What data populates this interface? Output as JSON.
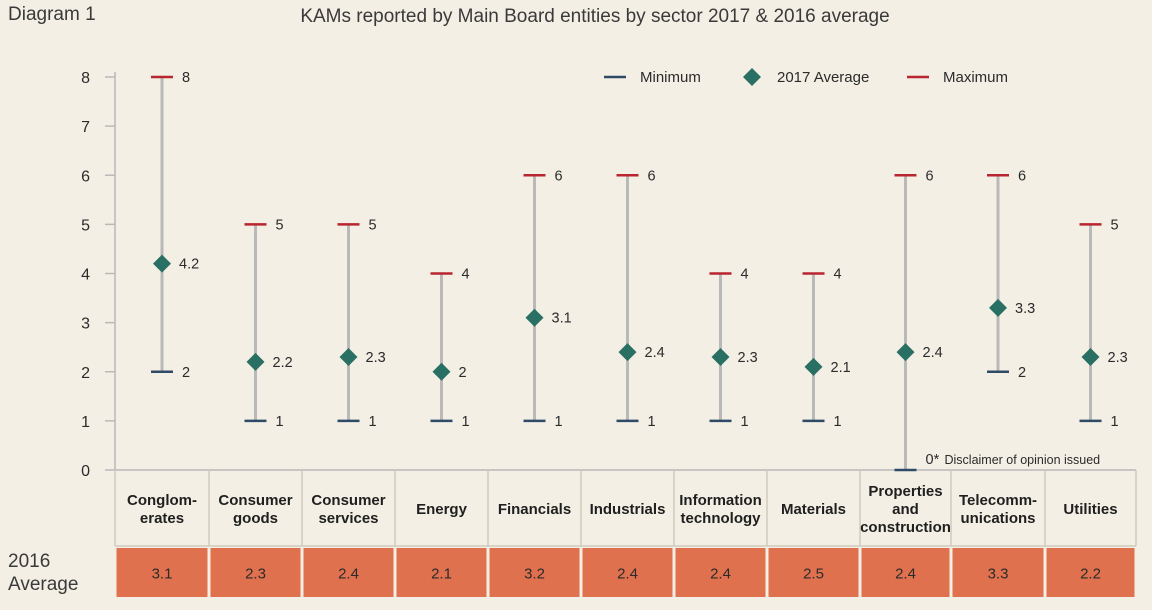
{
  "header": {
    "diagram_label": "Diagram 1",
    "title": "KAMs reported by Main Board entities by sector 2017 & 2016 average"
  },
  "colors": {
    "background": "#f3efe4",
    "minimum": "#2f4a66",
    "maximum": "#b8252f",
    "average": "#2a6f63",
    "range_line": "#b9b9b9",
    "table_cell": "#e0714f",
    "table_border": "#cfcabd"
  },
  "chart_data": {
    "type": "range",
    "title": "KAMs reported by Main Board entities by sector 2017 & 2016 average",
    "ylim": [
      0,
      8
    ],
    "yticks": [
      0,
      1,
      2,
      3,
      4,
      5,
      6,
      7,
      8
    ],
    "legend": {
      "placement": "top-right",
      "items": [
        {
          "label": "Minimum",
          "marker": "dash",
          "color": "#2f4a66"
        },
        {
          "label": "2017 Average",
          "marker": "diamond",
          "color": "#2a6f63"
        },
        {
          "label": "Maximum",
          "marker": "dash",
          "color": "#b8252f"
        }
      ]
    },
    "categories": [
      [
        "Conglom-",
        "erates"
      ],
      [
        "Consumer",
        "goods"
      ],
      [
        "Consumer",
        "services"
      ],
      [
        "Energy"
      ],
      [
        "Financials"
      ],
      [
        "Industrials"
      ],
      [
        "Information",
        "technology"
      ],
      [
        "Materials"
      ],
      [
        "Properties",
        "and",
        "construction"
      ],
      [
        "Telecomm-",
        "unications"
      ],
      [
        "Utilities"
      ]
    ],
    "series": [
      {
        "name": "Minimum",
        "values": [
          2,
          1,
          1,
          1,
          1,
          1,
          1,
          1,
          0,
          2,
          1
        ]
      },
      {
        "name": "2017 Average",
        "values": [
          4.2,
          2.2,
          2.3,
          2,
          3.1,
          2.4,
          2.3,
          2.1,
          2.4,
          3.3,
          2.3
        ]
      },
      {
        "name": "Maximum",
        "values": [
          8,
          5,
          5,
          4,
          6,
          6,
          4,
          4,
          6,
          6,
          5
        ]
      }
    ],
    "annotation": {
      "category_index": 8,
      "text": "0*",
      "note": "Disclaimer of opinion issued"
    },
    "table": {
      "row_label": [
        "2016",
        "Average"
      ],
      "values": [
        "3.1",
        "2.3",
        "2.4",
        "2.1",
        "3.2",
        "2.4",
        "2.4",
        "2.5",
        "2.4",
        "3.3",
        "2.2"
      ]
    }
  }
}
